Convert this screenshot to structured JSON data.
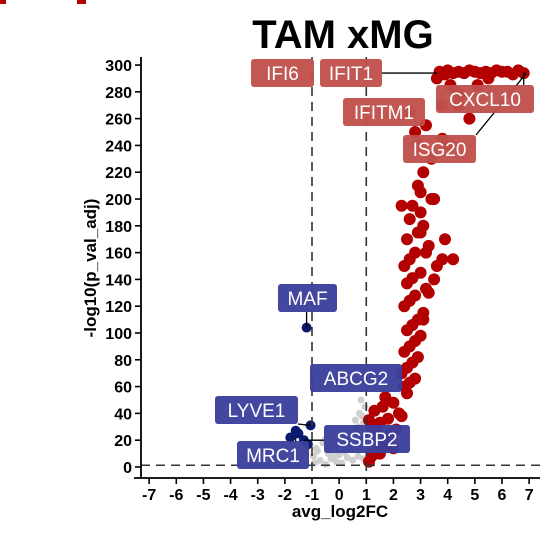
{
  "chart_data": {
    "type": "scatter",
    "title": "TAM xMG",
    "xlabel": "avg_log2FC",
    "ylabel": "-log10(p_val_adj)",
    "xlim": [
      -7.3,
      7.4
    ],
    "ylim": [
      -3,
      306
    ],
    "xticks": [
      -7,
      -6,
      -5,
      -4,
      -3,
      -2,
      -1,
      0,
      1,
      2,
      3,
      4,
      5,
      6,
      7
    ],
    "yticks": [
      0,
      20,
      40,
      60,
      80,
      100,
      120,
      140,
      160,
      180,
      200,
      220,
      240,
      260,
      280,
      300
    ],
    "thresholds": {
      "x": [
        -1,
        1
      ],
      "y": 1.3
    },
    "grid": false,
    "colors": {
      "up": "#b30000",
      "down": "#0a1a6e",
      "ns": "#cfcfcf",
      "up_label": "#c0504d",
      "down_label": "#3b3f9c"
    },
    "series": [
      {
        "group": "ns",
        "x": [
          -0.9,
          -0.7,
          -0.5,
          -0.3,
          -0.1,
          0.1,
          0.3,
          0.5,
          0.7,
          0.9,
          -0.8,
          -0.4,
          0.0,
          0.4,
          0.8,
          -0.6,
          -0.2,
          0.2,
          0.6,
          0.5,
          0.7,
          -0.3,
          0.9,
          0.6,
          -0.5,
          0.3,
          0.75,
          0.95,
          0.85,
          0.65,
          0.8,
          0.9,
          -0.95,
          -0.85
        ],
        "y": [
          3,
          5,
          2,
          6,
          4,
          3,
          7,
          5,
          8,
          6,
          12,
          10,
          9,
          14,
          16,
          18,
          8,
          11,
          20,
          25,
          30,
          15,
          22,
          35,
          21,
          19,
          40,
          45,
          38,
          28,
          50,
          33,
          8,
          14
        ]
      },
      {
        "group": "up",
        "x": [
          1.1,
          1.2,
          1.3,
          1.5,
          1.6,
          1.8,
          2.0,
          1.4,
          1.7,
          1.9,
          2.1,
          1.2,
          1.5,
          1.8,
          2.2,
          1.3,
          1.6,
          2.0,
          1.4,
          2.3,
          1.1,
          1.7,
          2.5,
          2.4,
          2.6,
          2.8,
          2.3,
          2.5,
          2.7,
          2.9,
          2.4,
          2.6,
          2.8,
          3.0,
          2.5,
          2.7,
          2.9,
          3.1,
          2.4,
          2.6,
          2.8,
          3.2,
          2.5,
          2.7,
          3.0,
          2.4,
          2.6,
          2.8,
          3.3,
          2.5,
          2.9,
          3.1,
          2.6,
          3.0,
          2.7,
          3.4,
          3.1,
          3.3,
          3.5,
          3.2,
          3.6,
          3.0,
          3.8,
          2.9,
          3.9,
          3.0,
          4.2,
          3.1,
          3.4,
          2.9,
          2.3,
          2.8,
          2.6,
          3.2,
          3.8,
          4.4,
          4.8,
          4.1,
          3.6,
          3.7,
          3.9,
          4.0,
          4.2,
          4.4,
          4.6,
          4.8,
          5.0,
          5.2,
          5.4,
          5.6,
          5.8,
          6.0,
          6.2,
          6.4,
          6.6,
          6.8,
          3.8,
          4.3,
          4.5,
          5.1,
          5.5,
          4.1,
          3.5
        ],
        "y": [
          4,
          8,
          12,
          10,
          15,
          18,
          14,
          20,
          22,
          25,
          28,
          30,
          33,
          36,
          40,
          42,
          45,
          48,
          26,
          38,
          35,
          52,
          55,
          60,
          63,
          66,
          70,
          74,
          78,
          82,
          86,
          90,
          94,
          98,
          102,
          106,
          110,
          115,
          120,
          124,
          128,
          133,
          137,
          141,
          145,
          150,
          155,
          160,
          165,
          170,
          175,
          180,
          185,
          190,
          195,
          200,
          110,
          130,
          140,
          160,
          150,
          175,
          155,
          210,
          170,
          205,
          155,
          220,
          230,
          240,
          195,
          250,
          265,
          255,
          245,
          270,
          260,
          285,
          290,
          295,
          293,
          296,
          294,
          295,
          294,
          296,
          295,
          294,
          295,
          294,
          296,
          295,
          295,
          293,
          296,
          294,
          270,
          280,
          278,
          285,
          290,
          240,
          200
        ]
      },
      {
        "group": "down",
        "x": [
          -1.2,
          -1.05,
          -1.5,
          -1.6,
          -1.8,
          -1.3,
          -1.15
        ],
        "y": [
          104,
          31,
          25,
          27,
          22,
          20,
          17
        ]
      }
    ],
    "annotations": [
      {
        "label": "IFI6",
        "group": "up"
      },
      {
        "label": "IFIT1",
        "group": "up"
      },
      {
        "label": "CXCL10",
        "group": "up"
      },
      {
        "label": "IFITM1",
        "group": "up"
      },
      {
        "label": "ISG20",
        "group": "up"
      },
      {
        "label": "MAF",
        "group": "down"
      },
      {
        "label": "ABCG2",
        "group": "down"
      },
      {
        "label": "LYVE1",
        "group": "down"
      },
      {
        "label": "SSBP2",
        "group": "down"
      },
      {
        "label": "MRC1",
        "group": "down"
      }
    ]
  }
}
